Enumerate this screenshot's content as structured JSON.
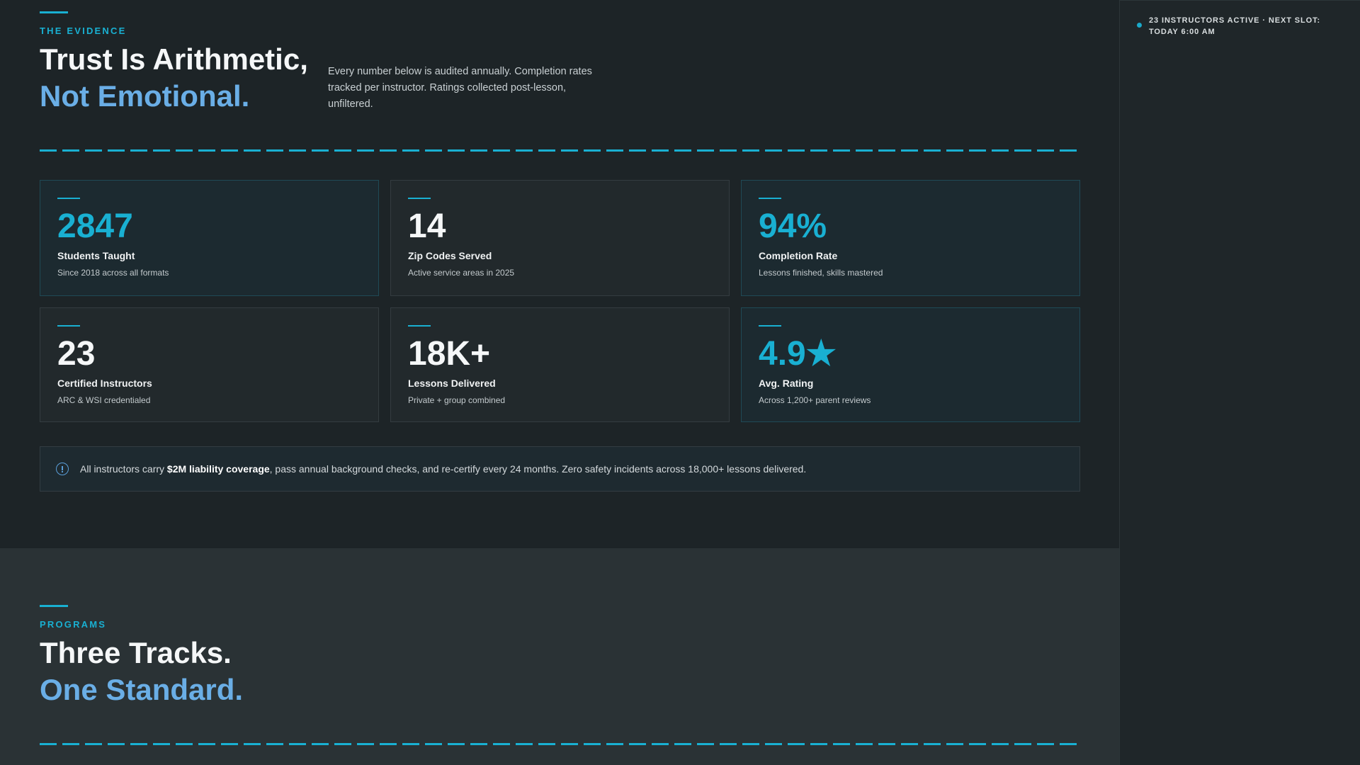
{
  "sidebar": {
    "status_text": "23 INSTRUCTORS ACTIVE · NEXT SLOT: TODAY 6:00 AM"
  },
  "evidence": {
    "eyebrow": "THE EVIDENCE",
    "title_line1": "Trust Is Arithmetic,",
    "title_line2": "Not Emotional.",
    "lead": "Every number below is audited annually. Completion rates tracked per instructor. Ratings collected post-lesson, unfiltered."
  },
  "stats": [
    {
      "value": "2847",
      "label": "Students Taught",
      "sub": "Since 2018 across all formats"
    },
    {
      "value": "14",
      "label": "Zip Codes Served",
      "sub": "Active service areas in 2025"
    },
    {
      "value": "94%",
      "label": "Completion Rate",
      "sub": "Lessons finished, skills mastered"
    },
    {
      "value": "23",
      "label": "Certified Instructors",
      "sub": "ARC & WSI credentialed"
    },
    {
      "value": "18K+",
      "label": "Lessons Delivered",
      "sub": "Private + group combined"
    },
    {
      "value": "4.9★",
      "label": "Avg. Rating",
      "sub": "Across 1,200+ parent reviews"
    }
  ],
  "notice": {
    "icon": "info-circle-icon",
    "text_before": "All instructors carry ",
    "text_bold": "$2M liability coverage",
    "text_after": ", pass annual background checks, and re-certify every 24 months. Zero safety incidents across 18,000+ lessons delivered."
  },
  "programs": {
    "eyebrow": "PROGRAMS",
    "title_line1": "Three Tracks.",
    "title_line2": "One Standard."
  },
  "colors": {
    "accent_cyan": "#19b0d2",
    "accent_blue": "#6aaee6",
    "background": "#1d2427"
  }
}
